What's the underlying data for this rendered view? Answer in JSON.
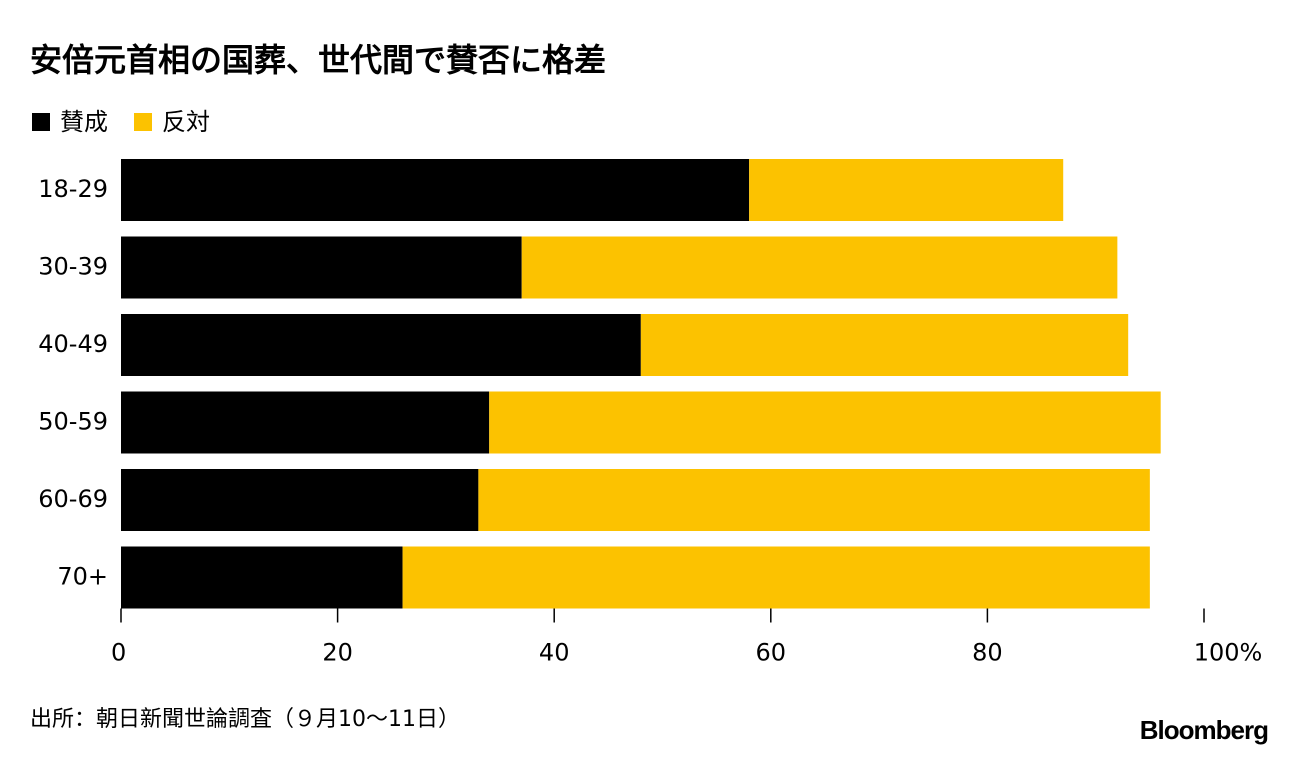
{
  "chart_data": {
    "type": "stacked-bar-horizontal",
    "title": "安倍元首相の国葬、世代間で賛否に格差",
    "categories": [
      "18-29",
      "30-39",
      "40-49",
      "50-59",
      "60-69",
      "70+"
    ],
    "series": [
      {
        "name": "賛成",
        "color": "#000000",
        "values": [
          58,
          37,
          48,
          34,
          33,
          26
        ]
      },
      {
        "name": "反対",
        "color": "#fcc200",
        "values": [
          29,
          55,
          45,
          62,
          62,
          69
        ]
      }
    ],
    "xlim": [
      0,
      100
    ],
    "xticks": [
      0,
      20,
      40,
      60,
      80,
      {
        "value": 100,
        "label": "100%"
      }
    ],
    "source": "出所：朝日新聞世論調査（９月10〜11日）",
    "logo": "Bloomberg"
  }
}
